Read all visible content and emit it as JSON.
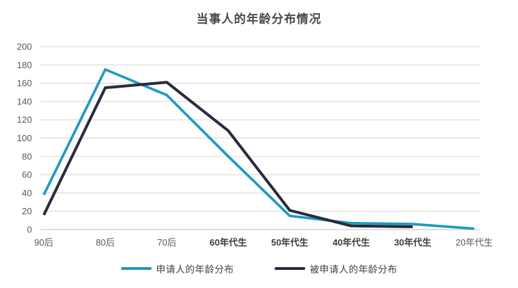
{
  "chart": {
    "title": "当事人的年龄分布情况"
  },
  "chart_data": {
    "type": "line",
    "title": "当事人的年龄分布情况",
    "categories": [
      "90后",
      "80后",
      "70后",
      "60年代生",
      "50年代生",
      "40年代生",
      "30年代生",
      "20年代生"
    ],
    "categories_bold": [
      false,
      false,
      false,
      true,
      true,
      true,
      true,
      false
    ],
    "series": [
      {
        "name": "申请人的年龄分布",
        "color": "#1C9ABF",
        "values": [
          38,
          175,
          147,
          80,
          15,
          7,
          6,
          1
        ]
      },
      {
        "name": "被申请人的年龄分布",
        "color": "#272B3D",
        "values": [
          16,
          155,
          161,
          108,
          21,
          4,
          3,
          null
        ]
      }
    ],
    "ylim": [
      0,
      200
    ],
    "ytick_step": 20,
    "yticks": [
      0,
      20,
      40,
      60,
      80,
      100,
      120,
      140,
      160,
      180,
      200
    ],
    "grid": "horizontal",
    "grid_color": "#dbdbdb",
    "axis_line_color": "#c9c9c9",
    "tick_label_color": "#595959",
    "bold_tick_label_color": "#3d3d3d",
    "legend_position": "bottom"
  }
}
